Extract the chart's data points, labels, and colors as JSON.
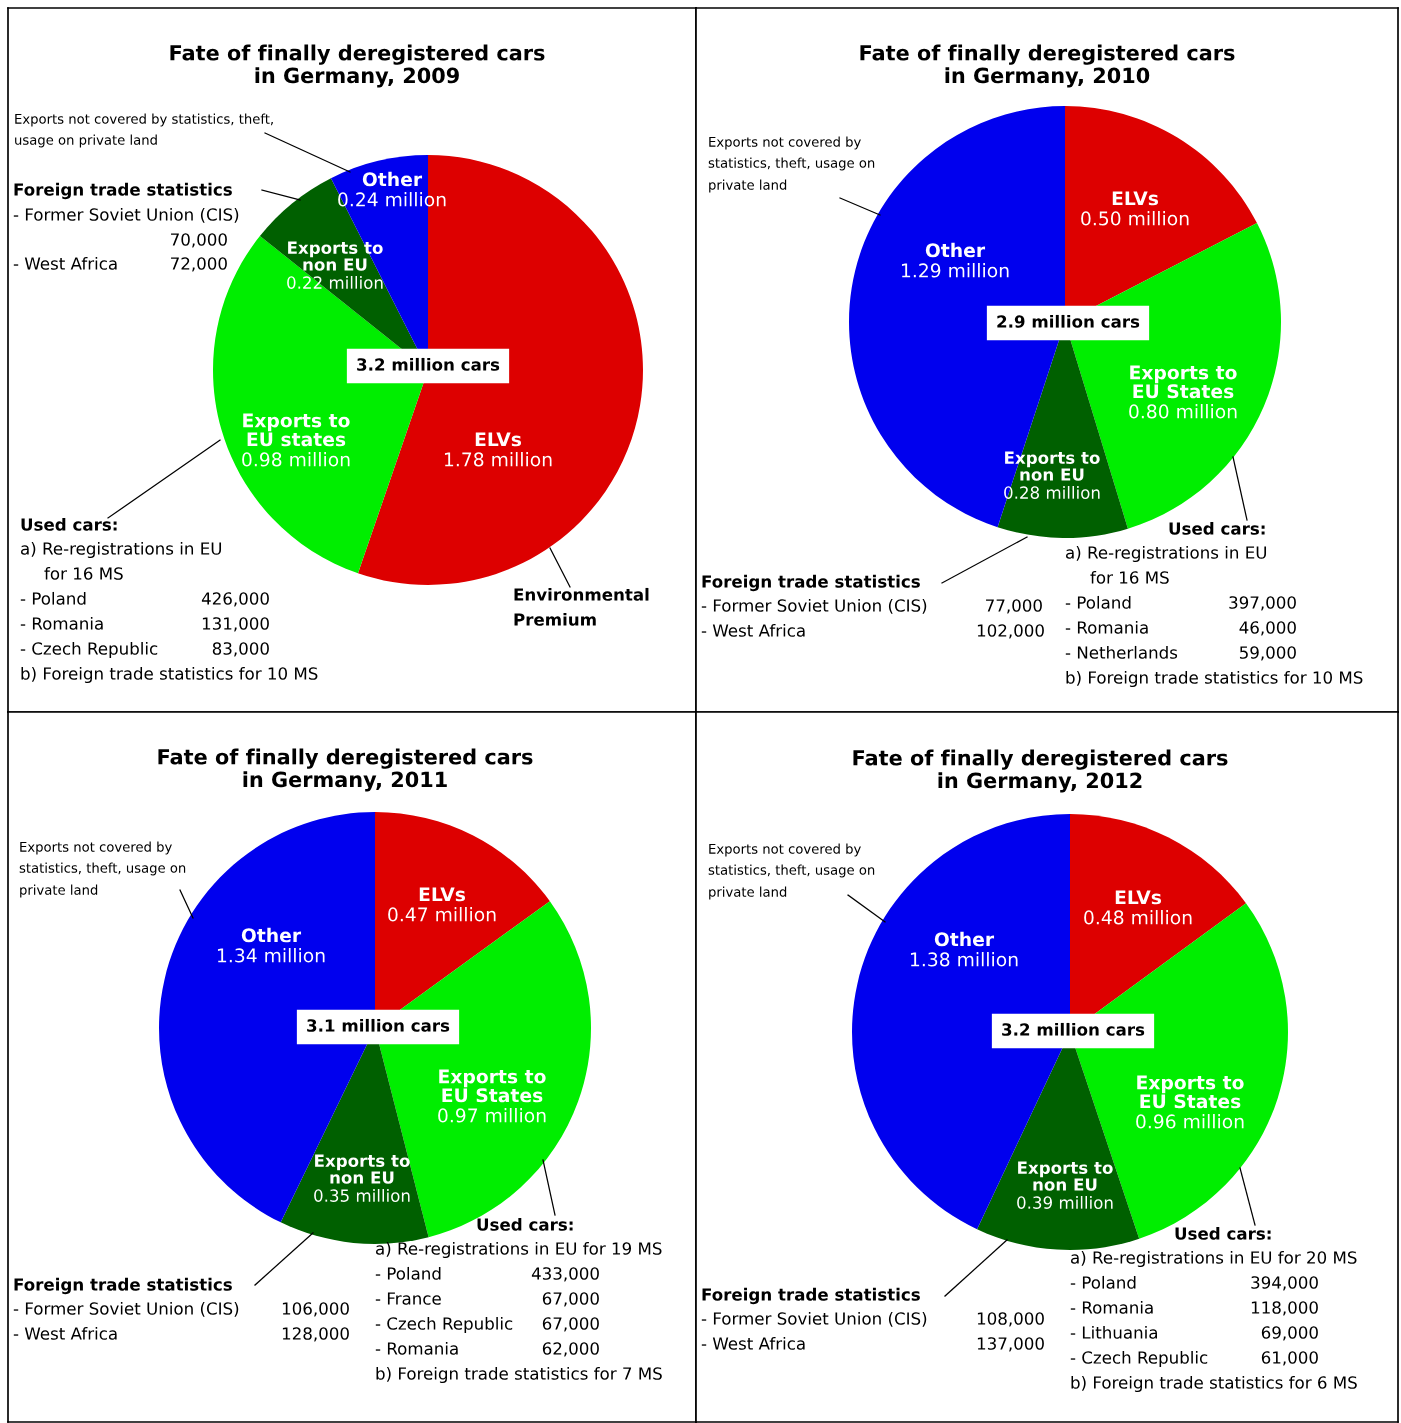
{
  "chart_data": [
    {
      "type": "pie",
      "title": "Fate of finally deregistered cars in Germany, 2009",
      "categories": [
        "ELVs",
        "Exports to EU states",
        "Exports to non EU",
        "Other"
      ],
      "values": [
        1.78,
        0.98,
        0.22,
        0.24
      ],
      "colors": [
        "#dd0000",
        "#00ee00",
        "#006000",
        "#0000ee"
      ],
      "value_labels": [
        "1.78 million",
        "0.98 million",
        "0.22 million",
        "0.24 million"
      ],
      "annotations": [
        "Exports not covered by statistics, theft,",
        "usage on private land",
        "Foreign trade statistics",
        "- Former Soviet Union (CIS)",
        "70,000",
        "- West Africa",
        "72,000",
        "3.2 million cars",
        "Used cars:",
        "a) Re-registrations in EU",
        "for 16 MS",
        "- Poland",
        "426,000",
        "- Romania",
        "131,000",
        "- Czech Republic",
        "83,000",
        "b) Foreign trade statistics for 10 MS",
        "Environmental",
        "Premium"
      ]
    },
    {
      "type": "pie",
      "title": "Fate of finally deregistered cars in Germany, 2010",
      "categories": [
        "ELVs",
        "Exports to EU States",
        "Exports to non EU",
        "Other"
      ],
      "values": [
        0.5,
        0.8,
        0.28,
        1.29
      ],
      "colors": [
        "#dd0000",
        "#00ee00",
        "#006000",
        "#0000ee"
      ],
      "value_labels": [
        "0.50 million",
        "0.80 million",
        "0.28 million",
        "1.29 million"
      ],
      "annotations": [
        "Exports not covered by",
        "statistics, theft, usage on",
        "private land",
        "2.9 million cars",
        "Used cars:",
        "a) Re-registrations in EU",
        "for 16 MS",
        "- Poland",
        "397,000",
        "- Romania",
        "46,000",
        "- Netherlands",
        "59,000",
        "b) Foreign trade statistics for 10 MS",
        "Foreign trade statistics",
        "- Former Soviet Union (CIS)",
        "77,000",
        "- West Africa",
        "102,000"
      ]
    },
    {
      "type": "pie",
      "title": "Fate of finally deregistered cars in Germany, 2011",
      "categories": [
        "ELVs",
        "Exports to EU States",
        "Exports to non EU",
        "Other"
      ],
      "values": [
        0.47,
        0.97,
        0.35,
        1.34
      ],
      "colors": [
        "#dd0000",
        "#00ee00",
        "#006000",
        "#0000ee"
      ],
      "value_labels": [
        "0.47 million",
        "0.97 million",
        "0.35 million",
        "1.34 million"
      ],
      "annotations": [
        "Exports not covered by",
        "statistics, theft, usage on",
        "private land",
        "3.1 million cars",
        "Used cars:",
        "a) Re-registrations in EU for 19 MS",
        "- Poland",
        "433,000",
        "- France",
        "67,000",
        "- Czech Republic",
        "67,000",
        "- Romania",
        "62,000",
        "b) Foreign trade statistics for 7 MS",
        "Foreign trade statistics",
        "- Former Soviet Union (CIS)",
        "106,000",
        "- West Africa",
        "128,000"
      ]
    },
    {
      "type": "pie",
      "title": "Fate of finally deregistered cars in Germany, 2012",
      "categories": [
        "ELVs",
        "Exports to EU States",
        "Exports to non EU",
        "Other"
      ],
      "values": [
        0.48,
        0.96,
        0.39,
        1.38
      ],
      "colors": [
        "#dd0000",
        "#00ee00",
        "#006000",
        "#0000ee"
      ],
      "value_labels": [
        "0.48 million",
        "0.96 million",
        "0.39 million",
        "1.38 million"
      ],
      "annotations": [
        "Exports not covered by",
        "statistics, theft, usage on",
        "private land",
        "3.2 million cars",
        "Used cars:",
        "a) Re-registrations in EU for 20 MS",
        "- Poland",
        "394,000",
        "- Romania",
        "118,000",
        "- Lithuania",
        "69,000",
        "- Czech Republic",
        "61,000",
        "b) Foreign trade statistics for 6 MS",
        "Foreign trade statistics",
        "- Former Soviet Union (CIS)",
        "108,000",
        "- West Africa",
        "137,000"
      ]
    }
  ]
}
